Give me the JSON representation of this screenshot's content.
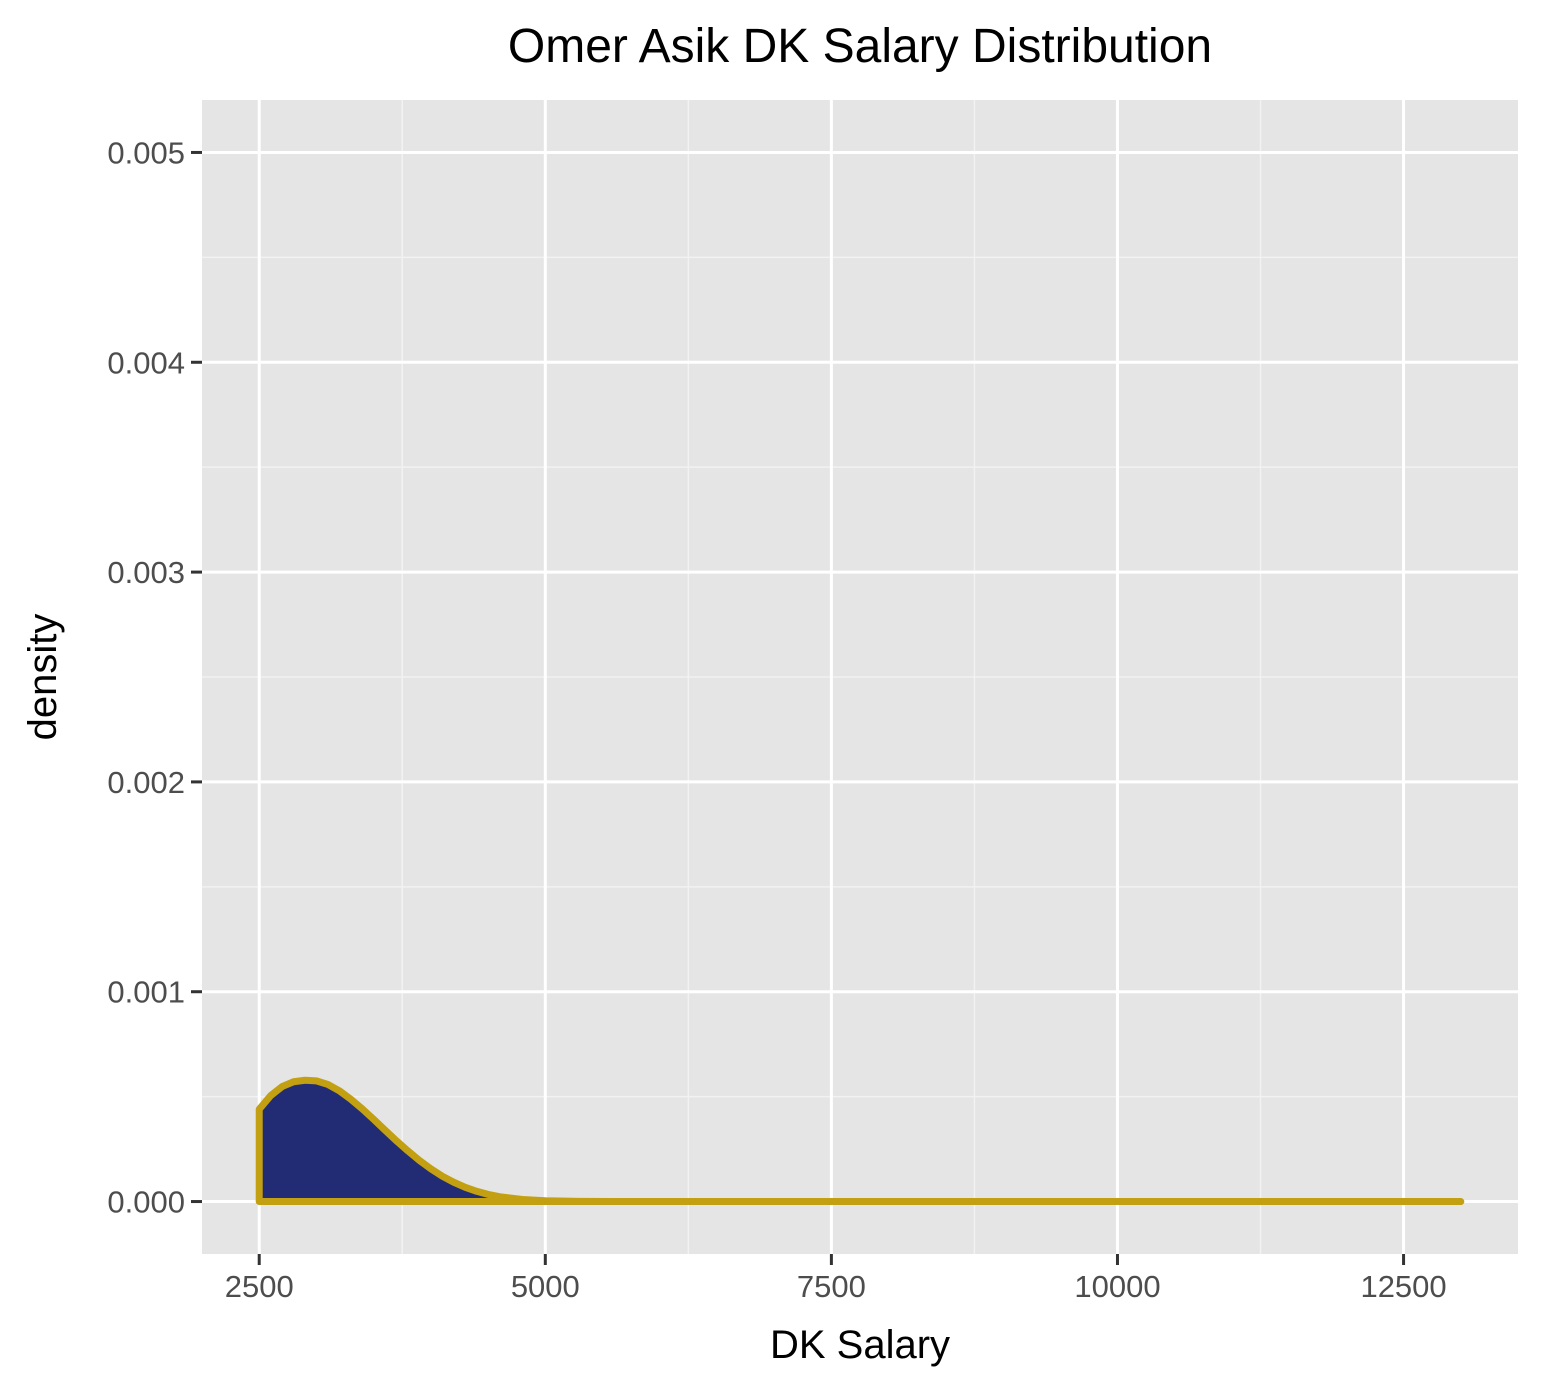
{
  "chart_data": {
    "type": "area",
    "title": "Omer Asik DK Salary Distribution",
    "xlabel": "DK Salary",
    "ylabel": "density",
    "xlim": [
      2000,
      13500
    ],
    "ylim": [
      -0.00025,
      0.00525
    ],
    "x_ticks": [
      2500,
      5000,
      7500,
      10000,
      12500
    ],
    "x_tick_labels": [
      "2500",
      "5000",
      "7500",
      "10000",
      "12500"
    ],
    "y_ticks": [
      0,
      0.001,
      0.002,
      0.003,
      0.004,
      0.005
    ],
    "y_tick_labels": [
      "0.000",
      "0.001",
      "0.002",
      "0.003",
      "0.004",
      "0.005"
    ],
    "grid": true,
    "series": [
      {
        "x": [
          2500,
          2600,
          2700,
          2800,
          2900,
          3000,
          3100,
          3200,
          3300,
          3400,
          3500,
          3600,
          3700,
          3800,
          3900,
          4000,
          4100,
          4200,
          4300,
          4400,
          4500,
          4600,
          4800,
          5000,
          5300,
          5600,
          6000,
          7000,
          8000,
          9000,
          10000,
          11000,
          12000,
          13000
        ],
        "y": [
          0.00044,
          0.000505,
          0.000548,
          0.000571,
          0.000578,
          0.000575,
          0.000558,
          0.000528,
          0.000488,
          0.000442,
          0.000392,
          0.00034,
          0.000289,
          0.000241,
          0.000196,
          0.000156,
          0.000121,
          9.2e-05,
          6.8e-05,
          4.9e-05,
          3.4e-05,
          2.3e-05,
          1e-05,
          4e-06,
          1e-06,
          2e-07,
          0,
          0,
          0,
          0,
          0,
          0,
          0,
          0
        ]
      }
    ],
    "colors": {
      "fill": "#212c75",
      "line": "#c2a012",
      "panel_background": "#e5e5e5",
      "grid_major": "#ffffff",
      "grid_minor": "#f2f2f2",
      "tick_mark": "#333333",
      "tick_text": "#4d4d4d"
    }
  }
}
